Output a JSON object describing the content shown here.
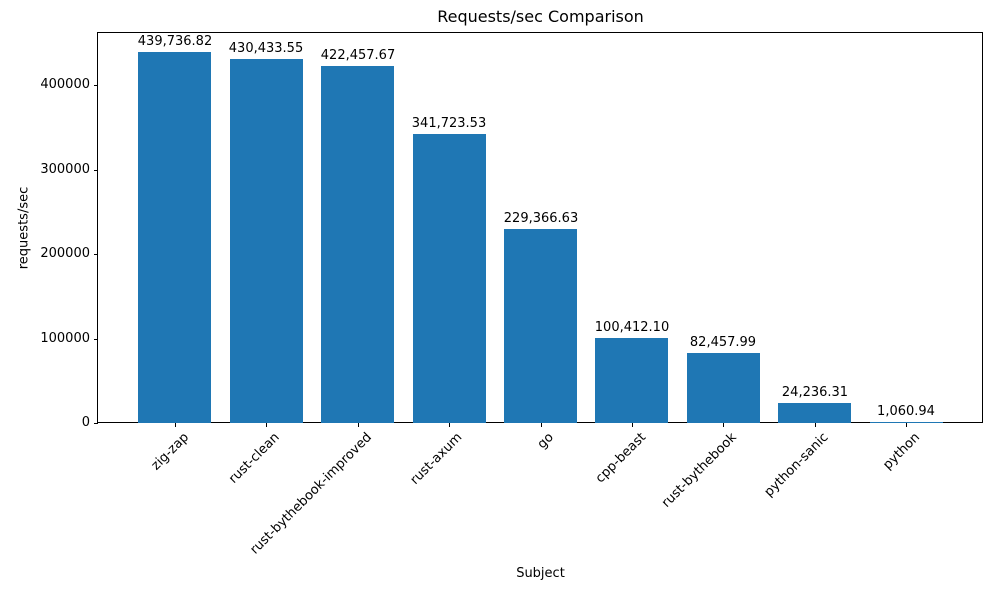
{
  "chart_data": {
    "type": "bar",
    "title": "Requests/sec Comparison",
    "xlabel": "Subject",
    "ylabel": "requests/sec",
    "categories": [
      "zig-zap",
      "rust-clean",
      "rust-bythebook-improved",
      "rust-axum",
      "go",
      "cpp-beast",
      "rust-bythebook",
      "python-sanic",
      "python"
    ],
    "values": [
      439736.82,
      430433.55,
      422457.67,
      341723.53,
      229366.63,
      100412.1,
      82457.99,
      24236.31,
      1060.94
    ],
    "value_labels": [
      "439,736.82",
      "430,433.55",
      "422,457.67",
      "341,723.53",
      "229,366.63",
      "100,412.10",
      "82,457.99",
      "24,236.31",
      "1,060.94"
    ],
    "yticks": [
      0,
      100000,
      200000,
      300000,
      400000
    ],
    "ytick_labels": [
      "0",
      "100000",
      "200000",
      "300000",
      "400000"
    ],
    "ylim": [
      0,
      461724
    ],
    "bar_color": "#1f77b4",
    "grid": false,
    "legend": null,
    "x_tick_rotation_deg": 45
  }
}
